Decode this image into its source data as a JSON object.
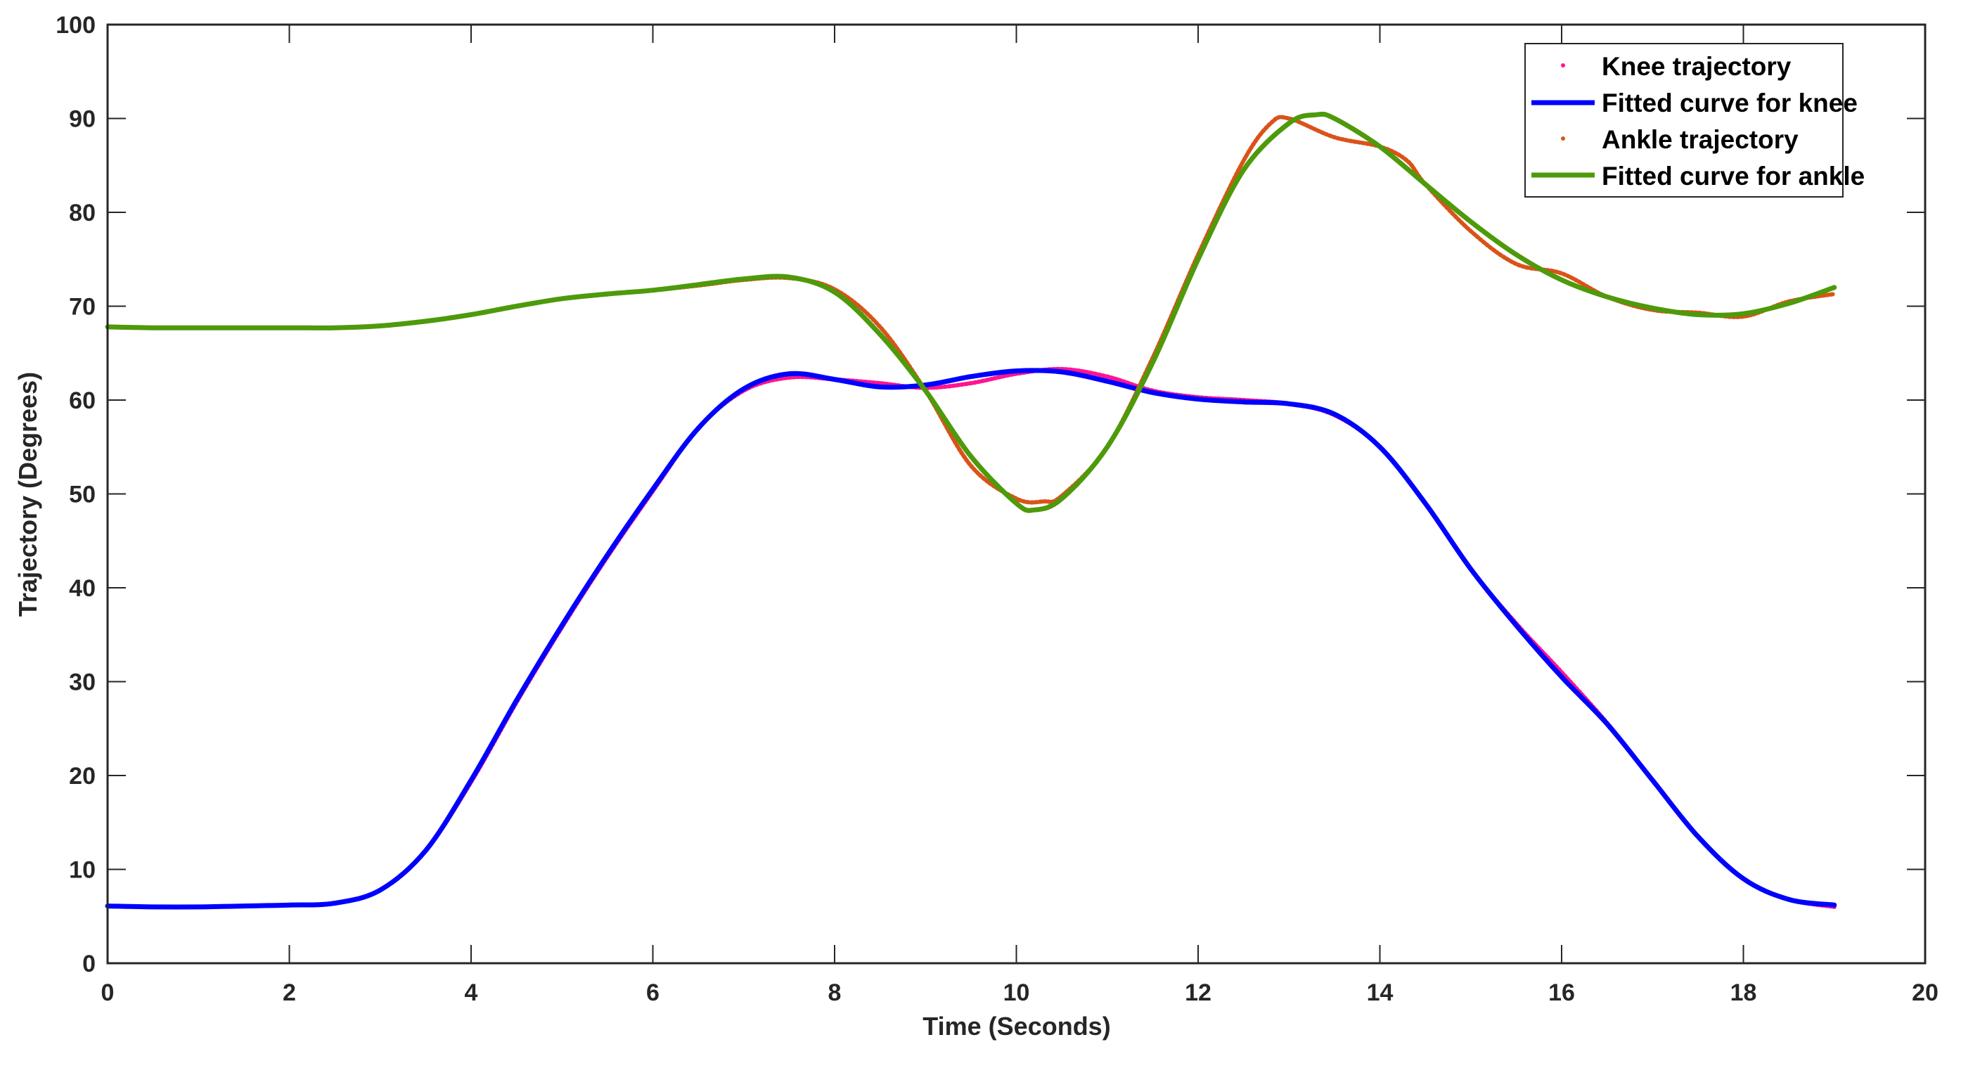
{
  "chart_data": {
    "type": "line",
    "title": "",
    "xlabel": "Time (Seconds)",
    "ylabel": "Trajectory (Degrees)",
    "xlim": [
      0,
      20
    ],
    "ylim": [
      0,
      100
    ],
    "xticks": [
      0,
      2,
      4,
      6,
      8,
      10,
      12,
      14,
      16,
      18,
      20
    ],
    "yticks": [
      0,
      10,
      20,
      30,
      40,
      50,
      60,
      70,
      80,
      90,
      100
    ],
    "grid": false,
    "legend_position": "upper right",
    "series": [
      {
        "name": "Knee trajectory",
        "style": "dots",
        "color": "#ff1493",
        "x": [
          0,
          0.5,
          1,
          1.5,
          2,
          2.5,
          3,
          3.5,
          4,
          4.5,
          5,
          5.5,
          6,
          6.5,
          7,
          7.5,
          8,
          8.5,
          9,
          9.5,
          10,
          10.5,
          11,
          11.5,
          12,
          12.5,
          13,
          13.5,
          14,
          14.5,
          15,
          15.5,
          16,
          16.5,
          17,
          17.5,
          18,
          18.5,
          19
        ],
        "values": [
          6.1,
          6.0,
          6.0,
          6.1,
          6.2,
          6.4,
          7.8,
          12.0,
          19.3,
          27.8,
          35.8,
          43.3,
          50.3,
          57.0,
          61.0,
          62.4,
          62.2,
          61.8,
          61.3,
          61.8,
          62.8,
          63.3,
          62.5,
          61.0,
          60.3,
          60.0,
          59.6,
          58.4,
          55.0,
          49.0,
          42.0,
          36.2,
          31.0,
          25.6,
          19.5,
          13.5,
          9.0,
          6.8,
          6.0
        ]
      },
      {
        "name": "Fitted curve for knee",
        "style": "line",
        "color": "#0000ff",
        "x": [
          0,
          0.5,
          1,
          1.5,
          2,
          2.5,
          3,
          3.5,
          4,
          4.5,
          5,
          5.5,
          6,
          6.5,
          7,
          7.5,
          8,
          8.5,
          9,
          9.5,
          10,
          10.5,
          11,
          11.5,
          12,
          12.5,
          13,
          13.5,
          14,
          14.5,
          15,
          15.5,
          16,
          16.5,
          17,
          17.5,
          18,
          18.5,
          19
        ],
        "values": [
          6.1,
          6.0,
          6.0,
          6.1,
          6.2,
          6.4,
          7.8,
          12.0,
          19.5,
          28.0,
          36.0,
          43.5,
          50.5,
          57.0,
          61.2,
          62.8,
          62.2,
          61.4,
          61.6,
          62.5,
          63.1,
          63.0,
          62.0,
          60.8,
          60.1,
          59.8,
          59.6,
          58.5,
          55.0,
          49.0,
          42.0,
          36.0,
          30.5,
          25.5,
          19.5,
          13.5,
          9.0,
          6.8,
          6.2
        ]
      },
      {
        "name": "Ankle trajectory",
        "style": "dots",
        "color": "#d95319",
        "x": [
          0,
          0.5,
          1,
          1.5,
          2,
          2.5,
          3,
          3.5,
          4,
          4.5,
          5,
          5.5,
          6,
          6.5,
          7,
          7.5,
          8,
          8.5,
          9,
          9.5,
          10,
          10.3,
          10.5,
          11,
          11.5,
          12,
          12.5,
          12.8,
          13,
          13.5,
          14,
          14.3,
          14.5,
          15,
          15.5,
          16,
          16.5,
          17,
          17.5,
          18,
          18.5,
          19
        ],
        "values": [
          67.8,
          67.7,
          67.7,
          67.7,
          67.7,
          67.7,
          67.9,
          68.4,
          69.1,
          70.0,
          70.8,
          71.3,
          71.7,
          72.2,
          72.8,
          73.0,
          71.8,
          67.8,
          61.0,
          53.0,
          49.5,
          49.2,
          49.8,
          55.0,
          64.5,
          75.5,
          85.5,
          89.5,
          90.0,
          88.0,
          87.0,
          85.5,
          83.0,
          78.0,
          74.5,
          73.5,
          71.0,
          69.6,
          69.3,
          68.9,
          70.5,
          71.3
        ]
      },
      {
        "name": "Fitted curve for ankle",
        "style": "line",
        "color": "#4d9a0a",
        "x": [
          0,
          0.5,
          1,
          1.5,
          2,
          2.5,
          3,
          3.5,
          4,
          4.5,
          5,
          5.5,
          6,
          6.5,
          7,
          7.5,
          8,
          8.5,
          9,
          9.5,
          10,
          10.2,
          10.5,
          11,
          11.5,
          12,
          12.5,
          13,
          13.3,
          13.5,
          14,
          14.5,
          15,
          15.5,
          16,
          16.5,
          17,
          17.5,
          18,
          18.5,
          19
        ],
        "values": [
          67.8,
          67.7,
          67.7,
          67.7,
          67.7,
          67.7,
          67.9,
          68.4,
          69.1,
          70.0,
          70.8,
          71.3,
          71.7,
          72.3,
          72.9,
          73.1,
          71.5,
          67.0,
          61.0,
          54.0,
          49.0,
          48.3,
          49.5,
          55.0,
          64.0,
          75.0,
          84.5,
          89.5,
          90.4,
          90.0,
          87.0,
          83.0,
          79.0,
          75.5,
          72.8,
          71.0,
          69.8,
          69.1,
          69.2,
          70.3,
          72.0
        ]
      }
    ]
  },
  "legend": {
    "items": [
      {
        "label": "Knee trajectory",
        "marker": "dot",
        "color": "#ff1493"
      },
      {
        "label": "Fitted curve for knee",
        "marker": "line",
        "color": "#0000ff"
      },
      {
        "label": "Ankle trajectory",
        "marker": "dot",
        "color": "#d95319"
      },
      {
        "label": "Fitted curve for ankle",
        "marker": "line",
        "color": "#4d9a0a"
      }
    ]
  },
  "colors": {
    "axis": "#262626",
    "background": "#ffffff"
  }
}
